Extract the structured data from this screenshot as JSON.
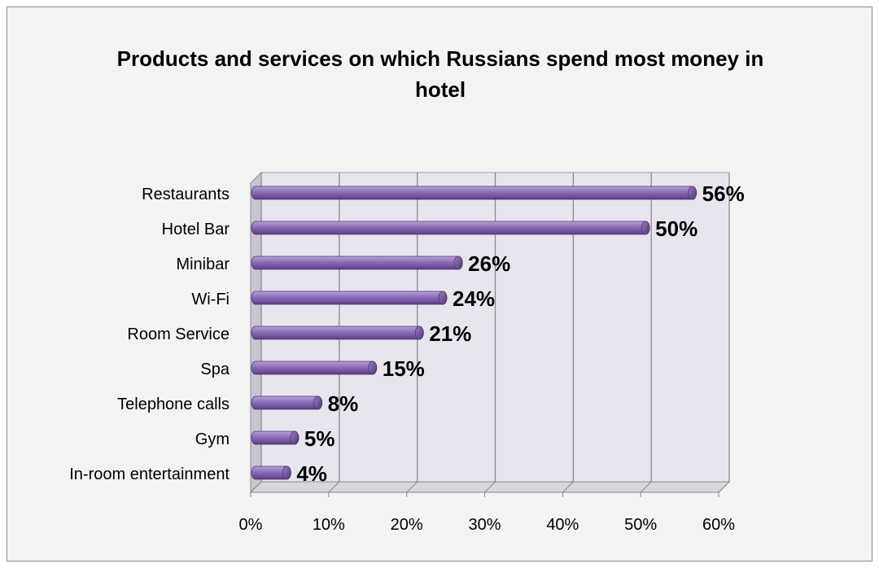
{
  "chart_data": {
    "type": "bar",
    "orientation": "horizontal",
    "title_lines": [
      "Products and services on which Russians spend most money in",
      "hotel"
    ],
    "categories": [
      "Restaurants",
      "Hotel Bar",
      "Minibar",
      "Wi-Fi",
      "Room Service",
      "Spa",
      "Telephone calls",
      "Gym ",
      "In-room entertainment"
    ],
    "values": [
      56,
      50,
      26,
      24,
      21,
      15,
      8,
      5,
      4
    ],
    "data_labels": [
      "56%",
      "50%",
      "26%",
      "24%",
      "21%",
      "15%",
      "8%",
      "5%",
      "4%"
    ],
    "x_ticks": [
      "0%",
      "10%",
      "20%",
      "30%",
      "40%",
      "50%",
      "60%"
    ],
    "xlim": [
      0,
      60
    ],
    "xlabel": "",
    "ylabel": "",
    "grid": true,
    "legend": false,
    "bar_color": "#8d6cb8",
    "plot_wall_color": "#e8e5ef"
  }
}
